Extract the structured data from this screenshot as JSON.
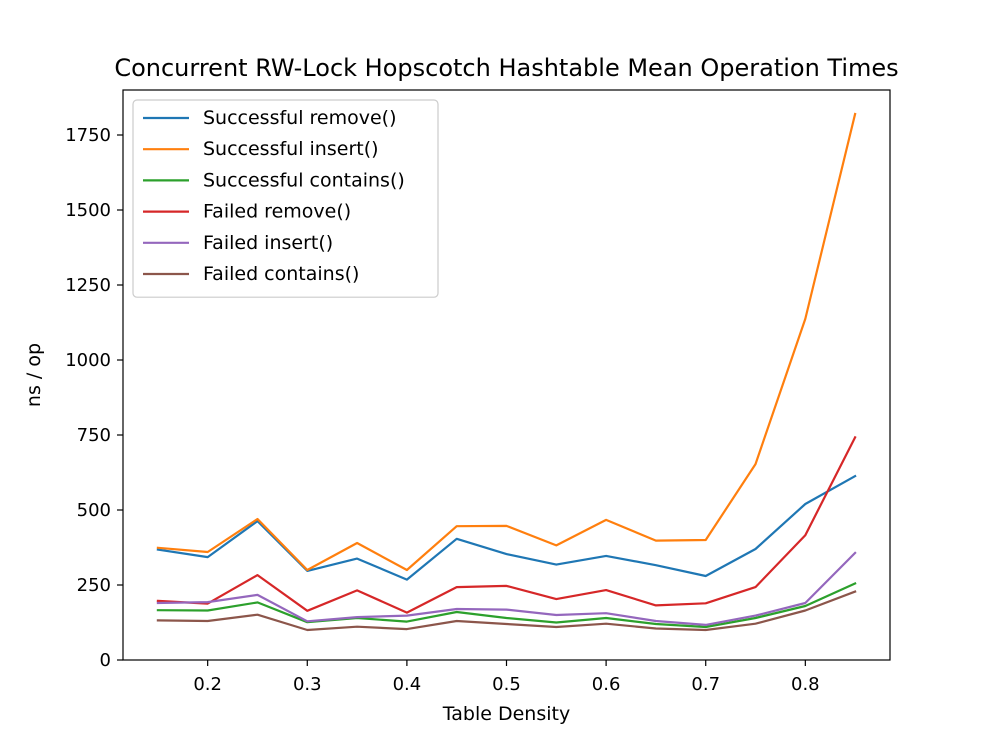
{
  "chart_data": {
    "type": "line",
    "title": "Concurrent RW-Lock Hopscotch Hashtable Mean Operation Times",
    "xlabel": "Table Density",
    "ylabel": "ns / op",
    "xlim": [
      0.115,
      0.885
    ],
    "ylim": [
      0,
      1900
    ],
    "xticks": [
      0.2,
      0.3,
      0.4,
      0.5,
      0.6,
      0.7,
      0.8
    ],
    "xtick_labels": [
      "0.2",
      "0.3",
      "0.4",
      "0.5",
      "0.6",
      "0.7",
      "0.8"
    ],
    "yticks": [
      0,
      250,
      500,
      750,
      1000,
      1250,
      1500,
      1750
    ],
    "ytick_labels": [
      "0",
      "250",
      "500",
      "750",
      "1000",
      "1250",
      "1500",
      "1750"
    ],
    "grid": false,
    "legend_position": "top-left",
    "x": [
      0.15,
      0.2,
      0.25,
      0.3,
      0.35,
      0.4,
      0.45,
      0.5,
      0.55,
      0.6,
      0.65,
      0.7,
      0.75,
      0.8,
      0.85
    ],
    "series": [
      {
        "name": "Successful remove()",
        "color": "#1f77b4",
        "values": [
          368,
          343,
          463,
          297,
          338,
          268,
          404,
          353,
          318,
          347,
          316,
          280,
          370,
          520,
          613
        ]
      },
      {
        "name": "Successful insert()",
        "color": "#ff7f0e",
        "values": [
          374,
          360,
          470,
          300,
          390,
          300,
          446,
          447,
          382,
          467,
          398,
          400,
          653,
          1137,
          1820
        ]
      },
      {
        "name": "Successful contains()",
        "color": "#2ca02c",
        "values": [
          166,
          165,
          192,
          126,
          140,
          128,
          160,
          140,
          125,
          140,
          120,
          110,
          140,
          180,
          255
        ]
      },
      {
        "name": "Failed remove()",
        "color": "#d62728",
        "values": [
          197,
          188,
          283,
          164,
          232,
          158,
          243,
          247,
          203,
          233,
          182,
          189,
          243,
          416,
          742
        ]
      },
      {
        "name": "Failed insert()",
        "color": "#9467bd",
        "values": [
          190,
          193,
          217,
          129,
          143,
          148,
          170,
          168,
          150,
          156,
          130,
          117,
          148,
          190,
          357
        ]
      },
      {
        "name": "Failed contains()",
        "color": "#8c564b",
        "values": [
          132,
          130,
          151,
          100,
          111,
          103,
          130,
          120,
          110,
          121,
          105,
          100,
          121,
          165,
          228
        ]
      }
    ]
  }
}
